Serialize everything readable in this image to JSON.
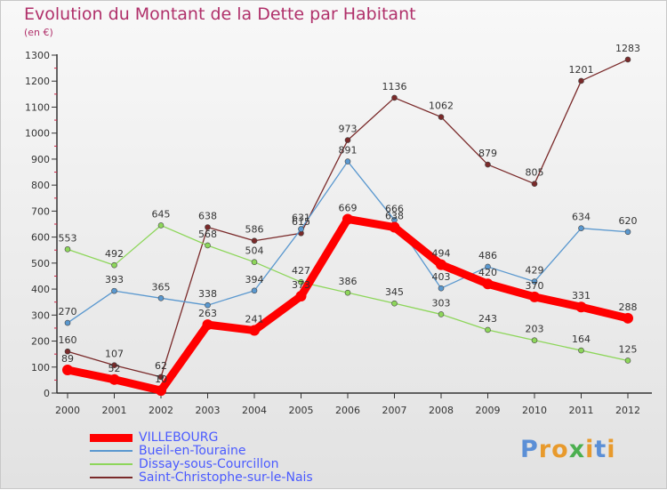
{
  "header": {
    "title": "Evolution du Montant de la Dette par Habitant",
    "unit": "(en €)"
  },
  "brand": {
    "text": "Proxiti",
    "letters": [
      {
        "char": "P",
        "color": "#5b8fd6"
      },
      {
        "char": "r",
        "color": "#e89a2c"
      },
      {
        "char": "o",
        "color": "#e89a2c"
      },
      {
        "char": "x",
        "color": "#4caf50"
      },
      {
        "char": "i",
        "color": "#e89a2c"
      },
      {
        "char": "t",
        "color": "#5b8fd6"
      },
      {
        "char": "i",
        "color": "#e89a2c"
      }
    ]
  },
  "chart_data": {
    "type": "line",
    "title": "Evolution du Montant de la Dette par Habitant",
    "subtitle": "(en €)",
    "x": [
      "2000",
      "2001",
      "2002",
      "2003",
      "2004",
      "2005",
      "2006",
      "2007",
      "2008",
      "2009",
      "2010",
      "2011",
      "2012"
    ],
    "ylim": [
      0,
      1300
    ],
    "yticks": [
      0,
      100,
      200,
      300,
      400,
      500,
      600,
      700,
      800,
      900,
      1000,
      1100,
      1200,
      1300
    ],
    "grid": false,
    "legend_position": "bottom-left",
    "series": [
      {
        "name": "VILLEBOURG",
        "color": "#ff0000",
        "values": [
          89,
          52,
          10,
          263,
          241,
          373,
          669,
          638,
          494,
          420,
          370,
          331,
          288
        ],
        "labels": [
          "89",
          "52",
          "10",
          "263",
          "241",
          "373",
          "669",
          "638",
          "494",
          "420",
          "370",
          "331",
          "288"
        ]
      },
      {
        "name": "Bueil-en-Touraine",
        "color": "#5a98cf",
        "values": [
          270,
          393,
          365,
          338,
          394,
          631,
          891,
          666,
          403,
          486,
          429,
          634,
          620
        ],
        "labels": [
          "270",
          "393",
          "365",
          "338",
          "394",
          "631",
          "891",
          "666",
          "403",
          "486",
          "429",
          "634",
          "620"
        ]
      },
      {
        "name": "Dissay-sous-Courcillon",
        "color": "#8dd65a",
        "values": [
          553,
          492,
          645,
          568,
          504,
          427,
          386,
          345,
          303,
          243,
          203,
          164,
          125
        ],
        "labels": [
          "553",
          "492",
          "645",
          "568",
          "504",
          "427",
          "386",
          "345",
          "303",
          "243",
          "203",
          "164",
          "125"
        ]
      },
      {
        "name": "Saint-Christophe-sur-le-Nais",
        "color": "#7a2a2a",
        "values": [
          160,
          107,
          62,
          638,
          586,
          615,
          973,
          1136,
          1062,
          879,
          805,
          1201,
          1283
        ],
        "labels": [
          "160",
          "107",
          "62",
          "638",
          "586",
          "615",
          "973",
          "1136",
          "1062",
          "879",
          "805",
          "1201",
          "1283"
        ]
      }
    ]
  }
}
